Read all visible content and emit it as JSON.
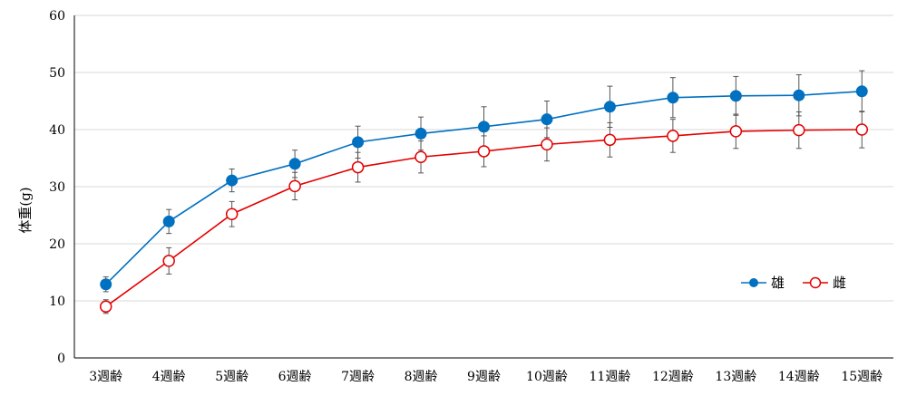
{
  "chart_data": {
    "type": "line",
    "title": "",
    "xlabel": "",
    "ylabel": "体重(g)",
    "ylim": [
      0,
      60
    ],
    "yticks": [
      0,
      10,
      20,
      30,
      40,
      50,
      60
    ],
    "grid": true,
    "legend_position": "right",
    "categories": [
      "3週齢",
      "4週齢",
      "5週齢",
      "6週齢",
      "7週齢",
      "8週齢",
      "9週齢",
      "10週齢",
      "11週齢",
      "12週齢",
      "13週齢",
      "14週齢",
      "15週齢"
    ],
    "series": [
      {
        "name": "雄",
        "color": "#0070c0",
        "marker": "filled-circle",
        "values": [
          12.9,
          23.9,
          31.1,
          34.0,
          37.8,
          39.3,
          40.5,
          41.8,
          44.0,
          45.6,
          45.9,
          46.0,
          46.7
        ],
        "errors": [
          1.3,
          2.1,
          2.0,
          2.4,
          2.8,
          2.9,
          3.5,
          3.2,
          3.6,
          3.5,
          3.4,
          3.6,
          3.6
        ]
      },
      {
        "name": "雌",
        "color": "#e30000",
        "marker": "open-circle",
        "values": [
          9.0,
          17.0,
          25.2,
          30.1,
          33.4,
          35.2,
          36.2,
          37.4,
          38.2,
          38.9,
          39.7,
          39.9,
          40.0
        ],
        "errors": [
          1.2,
          2.3,
          2.2,
          2.4,
          2.6,
          2.8,
          2.7,
          2.9,
          3.0,
          2.9,
          3.0,
          3.2,
          3.2
        ]
      }
    ]
  }
}
